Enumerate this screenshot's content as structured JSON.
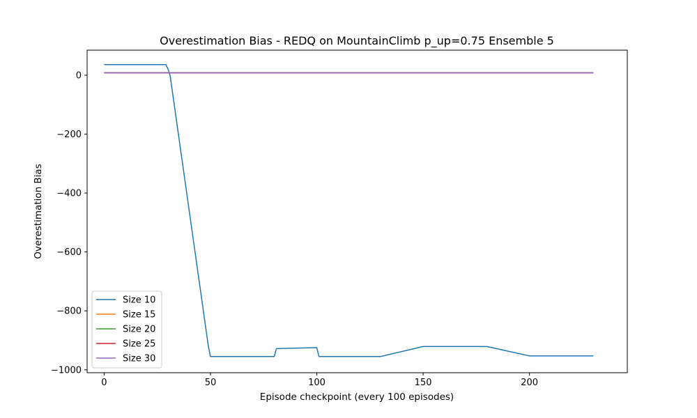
{
  "chart_data": {
    "type": "line",
    "title": "Overestimation Bias - REDQ on MountainClimb p_up=0.75 Ensemble 5",
    "xlabel": "Episode checkpoint (every 100 episodes)",
    "ylabel": "Overestimation Bias",
    "xlim": [
      -8,
      246
    ],
    "ylim": [
      -1010,
      85
    ],
    "xticks": [
      0,
      50,
      100,
      150,
      200
    ],
    "yticks": [
      0,
      -200,
      -400,
      -600,
      -800,
      -1000
    ],
    "ytick_labels": [
      "0",
      "−200",
      "−400",
      "−600",
      "−800",
      "−1000"
    ],
    "grid": false,
    "legend_position": "lower-left",
    "series": [
      {
        "name": "Size 10",
        "color": "#1f77b4",
        "points": [
          [
            0,
            36
          ],
          [
            29,
            36
          ],
          [
            30,
            22
          ],
          [
            31,
            0
          ],
          [
            49,
            -920
          ],
          [
            50,
            -955
          ],
          [
            80,
            -955
          ],
          [
            81,
            -928
          ],
          [
            100,
            -925
          ],
          [
            101,
            -955
          ],
          [
            130,
            -955
          ],
          [
            150,
            -921
          ],
          [
            180,
            -921
          ],
          [
            200,
            -953
          ],
          [
            230,
            -953
          ]
        ]
      },
      {
        "name": "Size 15",
        "color": "#ff7f0e",
        "points": [
          [
            0,
            8
          ],
          [
            230,
            8
          ]
        ]
      },
      {
        "name": "Size 20",
        "color": "#2ca02c",
        "points": [
          [
            0,
            8
          ],
          [
            230,
            8
          ]
        ]
      },
      {
        "name": "Size 25",
        "color": "#d62728",
        "points": [
          [
            0,
            8
          ],
          [
            230,
            8
          ]
        ]
      },
      {
        "name": "Size 30",
        "color": "#9467bd",
        "points": [
          [
            0,
            8
          ],
          [
            230,
            8
          ]
        ]
      }
    ]
  }
}
